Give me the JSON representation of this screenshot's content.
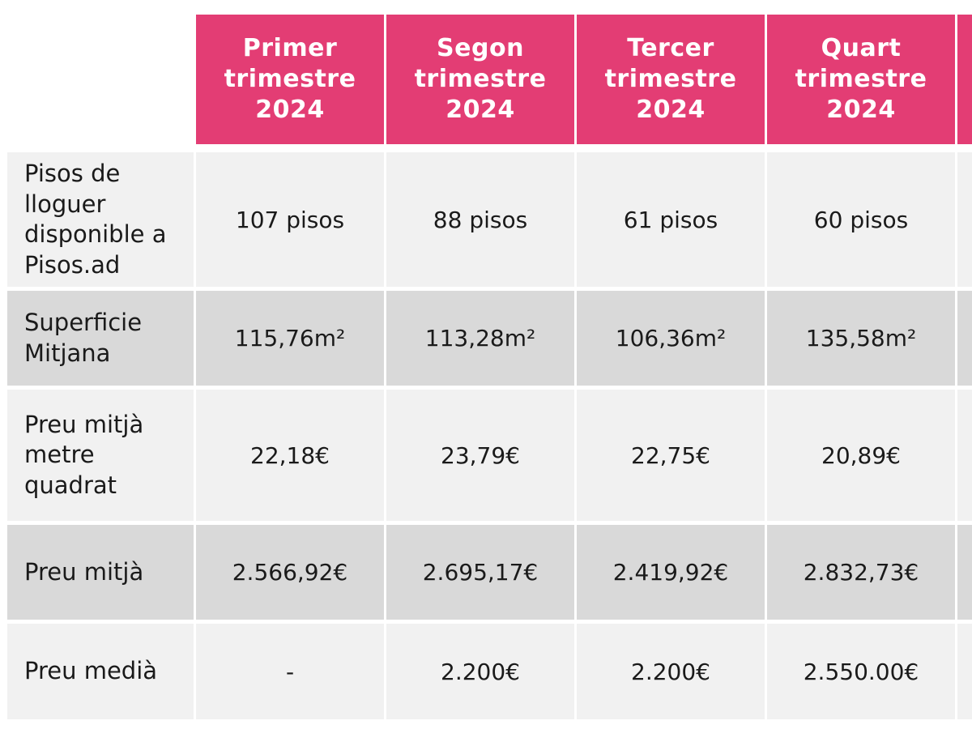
{
  "colors": {
    "header_bg": "#e33d74",
    "header_text": "#ffffff",
    "row_light": "#f1f1f1",
    "row_dark": "#d9d9d9"
  },
  "table": {
    "columns": [
      "Primer\ntrimestre\n2024",
      "Segon\ntrimestre\n2024",
      "Tercer\ntrimestre\n2024",
      "Quart\ntrimestre\n2024"
    ],
    "rows": [
      {
        "label": "Pisos de\nlloguer\ndisponible a\nPisos.ad",
        "values": [
          "107 pisos",
          "88 pisos",
          "61 pisos",
          "60 pisos"
        ]
      },
      {
        "label": "Superficie\nMitjana",
        "values": [
          "115,76m²",
          "113,28m²",
          "106,36m²",
          "135,58m²"
        ]
      },
      {
        "label": "Preu mitjà\nmetre\nquadrat",
        "values": [
          "22,18€",
          "23,79€",
          "22,75€",
          "20,89€"
        ]
      },
      {
        "label": "Preu mitjà",
        "values": [
          "2.566,92€",
          "2.695,17€",
          "2.419,92€",
          "2.832,73€"
        ]
      },
      {
        "label": "Preu medià",
        "values": [
          "-",
          "2.200€",
          "2.200€",
          "2.550.00€"
        ]
      }
    ]
  }
}
